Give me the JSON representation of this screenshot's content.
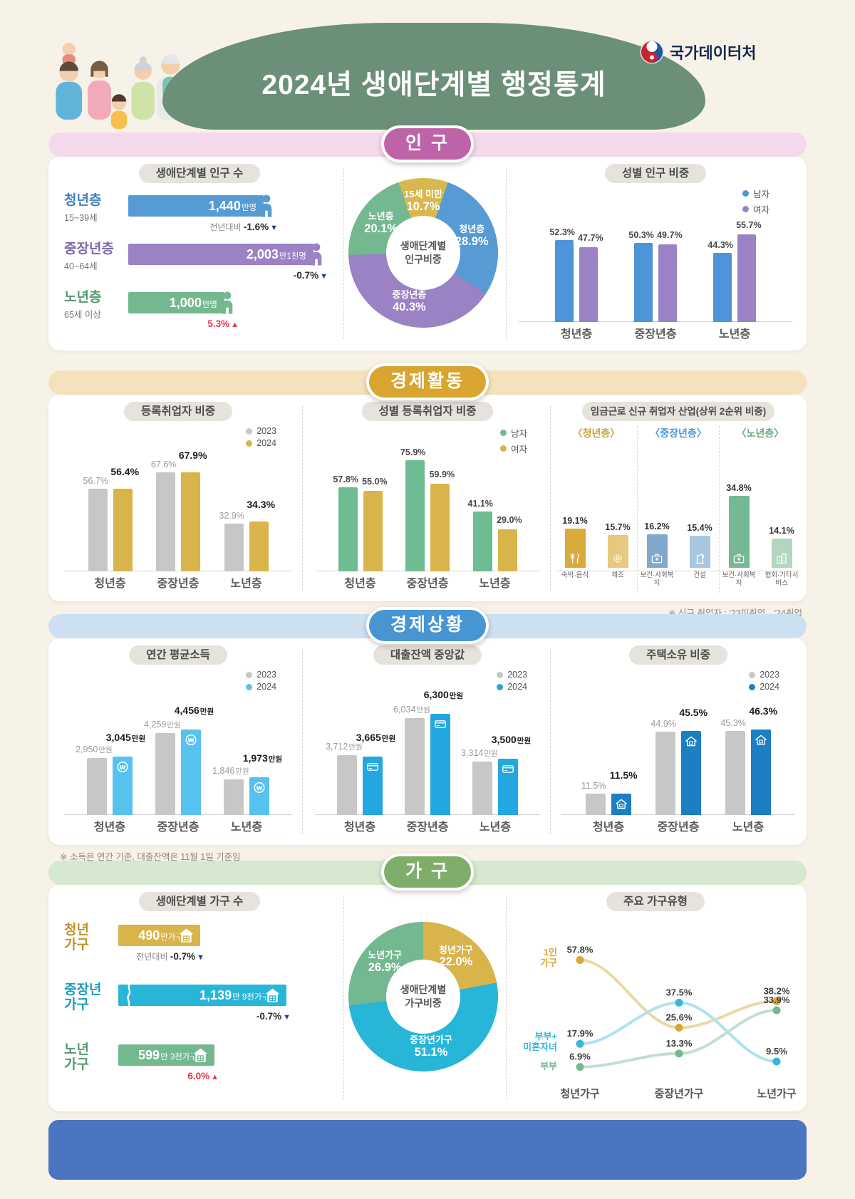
{
  "page": {
    "logo": "국가데이터처",
    "title": "2024년 생애단계별 행정통계"
  },
  "population": {
    "badge": "인 구",
    "count": {
      "title": "생애단계별 인구 수",
      "rows": [
        {
          "name": "청년층",
          "age": "15~39세",
          "big": "1,440",
          "small": "만명",
          "amount": 1440,
          "change_prefix": "전년대비 ",
          "change": "-1.6%",
          "dir": "down",
          "color": "#579bd5",
          "text_color": "#3d7fc1"
        },
        {
          "name": "중장년층",
          "age": "40~64세",
          "big": "2,003",
          "small": "만1천명",
          "amount": 2003,
          "change_prefix": "",
          "change": "-0.7%",
          "dir": "down",
          "color": "#9b82c5",
          "text_color": "#7e68ad"
        },
        {
          "name": "노년층",
          "age": "65세 이상",
          "big": "1,000",
          "small": "만명",
          "amount": 1000,
          "change_prefix": "",
          "change": "5.3%",
          "dir": "up",
          "color": "#74b890",
          "text_color": "#569a72"
        }
      ]
    },
    "share_donut": {
      "center": "생애단계별\n인구비중",
      "slices": [
        {
          "label": "15세 미만",
          "value": 10.7,
          "color": "#d8b84e"
        },
        {
          "label": "청년층",
          "value": 28.9,
          "color": "#579bd5"
        },
        {
          "label": "중장년층",
          "value": 40.3,
          "color": "#9b82c5"
        },
        {
          "label": "노년층",
          "value": 20.1,
          "color": "#74b890"
        }
      ]
    },
    "gender": {
      "title": "성별 인구 비중",
      "legend": [
        {
          "label": "남자",
          "color": "#4d94d8"
        },
        {
          "label": "여자",
          "color": "#9b82c5"
        }
      ],
      "categories": [
        "청년층",
        "중장년층",
        "노년층"
      ],
      "values": [
        [
          52.3,
          47.7
        ],
        [
          50.3,
          49.7
        ],
        [
          44.3,
          55.7
        ]
      ]
    }
  },
  "activity": {
    "badge": "경제활동",
    "employment": {
      "title": "등록취업자 비중",
      "legend": [
        {
          "label": "2023",
          "color": "#c7c7c7"
        },
        {
          "label": "2024",
          "color": "#d9b44a"
        }
      ],
      "categories": [
        "청년층",
        "중장년층",
        "노년층"
      ],
      "values": [
        [
          56.7,
          56.4
        ],
        [
          67.6,
          67.9
        ],
        [
          32.9,
          34.3
        ]
      ]
    },
    "gender_employment": {
      "title": "성별 등록취업자 비중",
      "legend": [
        {
          "label": "남자",
          "color": "#6fbb92"
        },
        {
          "label": "여자",
          "color": "#d9b44a"
        }
      ],
      "categories": [
        "청년층",
        "중장년층",
        "노년층"
      ],
      "values": [
        [
          57.8,
          55.0
        ],
        [
          75.9,
          59.9
        ],
        [
          41.1,
          29.0
        ]
      ]
    },
    "industry": {
      "title": "임금근로 신규 취업자 산업(상위 2순위 비중)",
      "groups": [
        {
          "label": "〈청년층〉",
          "label_color": "#d2a12e",
          "colors": [
            "#d9ab3c",
            "#e6c87f"
          ],
          "bars": [
            {
              "name": "숙박·음식",
              "value": 19.1,
              "icon": "dining"
            },
            {
              "name": "제조",
              "value": 15.7,
              "icon": "gear"
            }
          ]
        },
        {
          "label": "〈중장년층〉",
          "label_color": "#4e97d8",
          "colors": [
            "#7fa8cc",
            "#a9c6e0"
          ],
          "bars": [
            {
              "name": "보건·사회복지",
              "value": 16.2,
              "icon": "medical"
            },
            {
              "name": "건설",
              "value": 15.4,
              "icon": "construction"
            }
          ]
        },
        {
          "label": "〈노년층〉",
          "label_color": "#63ad82",
          "colors": [
            "#74b894",
            "#b2d6bf"
          ],
          "bars": [
            {
              "name": "보건·사회복지",
              "value": 34.8,
              "icon": "medical"
            },
            {
              "name": "협회·기타서비스",
              "value": 14.1,
              "icon": "building"
            }
          ]
        }
      ],
      "footnote": "※ 신규 취업자 : '23미취업→'24취업"
    }
  },
  "status": {
    "badge": "경제상황",
    "income": {
      "title": "연간 평균소득",
      "legend": [
        {
          "label": "2023",
          "color": "#c7c7c7"
        },
        {
          "label": "2024",
          "color": "#57c2ee"
        }
      ],
      "categories": [
        "청년층",
        "중장년층",
        "노년층"
      ],
      "values": [
        [
          2950,
          3045
        ],
        [
          4259,
          4456
        ],
        [
          1846,
          1973
        ]
      ],
      "unit": "만원"
    },
    "loan": {
      "title": "대출잔액 중앙값",
      "legend": [
        {
          "label": "2023",
          "color": "#c7c7c7"
        },
        {
          "label": "2024",
          "color": "#23a7e0"
        }
      ],
      "categories": [
        "청년층",
        "중장년층",
        "노년층"
      ],
      "values": [
        [
          3712,
          3665
        ],
        [
          6034,
          6300
        ],
        [
          3314,
          3500
        ]
      ],
      "unit": "만원"
    },
    "housing": {
      "title": "주택소유 비중",
      "legend": [
        {
          "label": "2023",
          "color": "#c7c7c7"
        },
        {
          "label": "2024",
          "color": "#1d7ec2"
        }
      ],
      "categories": [
        "청년층",
        "중장년층",
        "노년층"
      ],
      "values": [
        [
          11.5,
          11.5
        ],
        [
          44.9,
          45.5
        ],
        [
          45.3,
          46.3
        ]
      ]
    },
    "footnote": "※ 소득은 연간 기준, 대출잔액은 11월 1일 기준임"
  },
  "household": {
    "badge": "가 구",
    "count": {
      "title": "생애단계별 가구 수",
      "rows": [
        {
          "name": "청년\n가구",
          "big": "490",
          "small": "만가구",
          "amount": 490,
          "change_prefix": "전년대비 ",
          "change": "-0.7%",
          "dir": "down",
          "color": "#d9b44a",
          "text_color": "#c3912c",
          "break": false
        },
        {
          "name": "중장년\n가구",
          "big": "1,139",
          "small": "만 9천가구",
          "amount": 1139.9,
          "change_prefix": "",
          "change": "-0.7%",
          "dir": "down",
          "color": "#27b5d8",
          "text_color": "#1b9cbd",
          "break": true
        },
        {
          "name": "노년\n가구",
          "big": "599",
          "small": "만 3천가구",
          "amount": 599.3,
          "change_prefix": "",
          "change": "6.0%",
          "dir": "up",
          "color": "#74b890",
          "text_color": "#569a72",
          "break": false
        }
      ]
    },
    "share_donut": {
      "center": "생애단계별\n가구비중",
      "slices": [
        {
          "label": "청년가구",
          "value": 22.0,
          "color": "#d9b44a"
        },
        {
          "label": "중장년가구",
          "value": 51.1,
          "color": "#27b5d8"
        },
        {
          "label": "노년가구",
          "value": 26.9,
          "color": "#74b890"
        }
      ]
    },
    "types": {
      "title": "주요 가구유형",
      "categories": [
        "청년가구",
        "중장년가구",
        "노년가구"
      ],
      "series": [
        {
          "name": "1인\n가구",
          "color": "#d9a733",
          "line_color": "#ecd8a4",
          "values": [
            57.8,
            25.6,
            38.2
          ]
        },
        {
          "name": "부부+\n미혼자녀",
          "color": "#35b7d9",
          "line_color": "#aee2ef",
          "values": [
            17.9,
            37.5,
            9.5
          ]
        },
        {
          "name": "부부",
          "color": "#74b890",
          "line_color": "#bfe0cd",
          "values": [
            6.9,
            13.3,
            33.9
          ]
        }
      ]
    }
  },
  "chart_data": [
    {
      "type": "bar",
      "orientation": "horizontal",
      "title": "생애단계별 인구 수",
      "categories": [
        "청년층(15~39세)",
        "중장년층(40~64세)",
        "노년층(65세 이상)"
      ],
      "values": [
        1440,
        2003.1,
        1000
      ],
      "unit": "만명",
      "labels": [
        "1,440만명",
        "2,003만1천명",
        "1,000만명"
      ],
      "yoy_change": [
        "-1.6%",
        "-0.7%",
        "+5.3%"
      ]
    },
    {
      "type": "pie",
      "title": "생애단계별 인구비중",
      "categories": [
        "15세 미만",
        "청년층",
        "중장년층",
        "노년층"
      ],
      "values": [
        10.7,
        28.9,
        40.3,
        20.1
      ],
      "unit": "%"
    },
    {
      "type": "bar",
      "title": "성별 인구 비중",
      "categories": [
        "청년층",
        "중장년층",
        "노년층"
      ],
      "series": [
        {
          "name": "남자",
          "values": [
            52.3,
            50.3,
            44.3
          ]
        },
        {
          "name": "여자",
          "values": [
            47.7,
            49.7,
            55.7
          ]
        }
      ],
      "unit": "%"
    },
    {
      "type": "bar",
      "title": "등록취업자 비중",
      "categories": [
        "청년층",
        "중장년층",
        "노년층"
      ],
      "series": [
        {
          "name": "2023",
          "values": [
            56.7,
            67.6,
            32.9
          ]
        },
        {
          "name": "2024",
          "values": [
            56.4,
            67.9,
            34.3
          ]
        }
      ],
      "unit": "%"
    },
    {
      "type": "bar",
      "title": "성별 등록취업자 비중",
      "categories": [
        "청년층",
        "중장년층",
        "노년층"
      ],
      "series": [
        {
          "name": "남자",
          "values": [
            57.8,
            75.9,
            41.1
          ]
        },
        {
          "name": "여자",
          "values": [
            55.0,
            59.9,
            29.0
          ]
        }
      ],
      "unit": "%"
    },
    {
      "type": "bar",
      "title": "임금근로 신규 취업자 산업(상위 2순위 비중)",
      "groups": [
        {
          "group": "청년층",
          "categories": [
            "숙박·음식",
            "제조"
          ],
          "values": [
            19.1,
            15.7
          ]
        },
        {
          "group": "중장년층",
          "categories": [
            "보건·사회복지",
            "건설"
          ],
          "values": [
            16.2,
            15.4
          ]
        },
        {
          "group": "노년층",
          "categories": [
            "보건·사회복지",
            "협회·기타서비스"
          ],
          "values": [
            34.8,
            14.1
          ]
        }
      ],
      "unit": "%",
      "note": "※ 신규 취업자 : '23미취업→'24취업"
    },
    {
      "type": "bar",
      "title": "연간 평균소득",
      "categories": [
        "청년층",
        "중장년층",
        "노년층"
      ],
      "series": [
        {
          "name": "2023",
          "values": [
            2950,
            4259,
            1846
          ]
        },
        {
          "name": "2024",
          "values": [
            3045,
            4456,
            1973
          ]
        }
      ],
      "unit": "만원"
    },
    {
      "type": "bar",
      "title": "대출잔액 중앙값",
      "categories": [
        "청년층",
        "중장년층",
        "노년층"
      ],
      "series": [
        {
          "name": "2023",
          "values": [
            3712,
            6034,
            3314
          ]
        },
        {
          "name": "2024",
          "values": [
            3665,
            6300,
            3500
          ]
        }
      ],
      "unit": "만원"
    },
    {
      "type": "bar",
      "title": "주택소유 비중",
      "categories": [
        "청년층",
        "중장년층",
        "노년층"
      ],
      "series": [
        {
          "name": "2023",
          "values": [
            11.5,
            44.9,
            45.3
          ]
        },
        {
          "name": "2024",
          "values": [
            11.5,
            45.5,
            46.3
          ]
        }
      ],
      "unit": "%",
      "note": "※ 소득은 연간 기준, 대출잔액은 11월 1일 기준임"
    },
    {
      "type": "bar",
      "orientation": "horizontal",
      "title": "생애단계별 가구 수",
      "categories": [
        "청년가구",
        "중장년가구",
        "노년가구"
      ],
      "values": [
        490,
        1139.9,
        599.3
      ],
      "unit": "만가구",
      "labels": [
        "490만가구",
        "1,139만 9천가구",
        "599만 3천가구"
      ],
      "yoy_change": [
        "-0.7%",
        "-0.7%",
        "+6.0%"
      ]
    },
    {
      "type": "pie",
      "title": "생애단계별 가구비중",
      "categories": [
        "청년가구",
        "중장년가구",
        "노년가구"
      ],
      "values": [
        22.0,
        51.1,
        26.9
      ],
      "unit": "%"
    },
    {
      "type": "line",
      "title": "주요 가구유형",
      "categories": [
        "청년가구",
        "중장년가구",
        "노년가구"
      ],
      "series": [
        {
          "name": "1인 가구",
          "values": [
            57.8,
            25.6,
            38.2
          ]
        },
        {
          "name": "부부+미혼자녀",
          "values": [
            17.9,
            37.5,
            9.5
          ]
        },
        {
          "name": "부부",
          "values": [
            6.9,
            13.3,
            33.9
          ]
        }
      ],
      "unit": "%"
    }
  ]
}
